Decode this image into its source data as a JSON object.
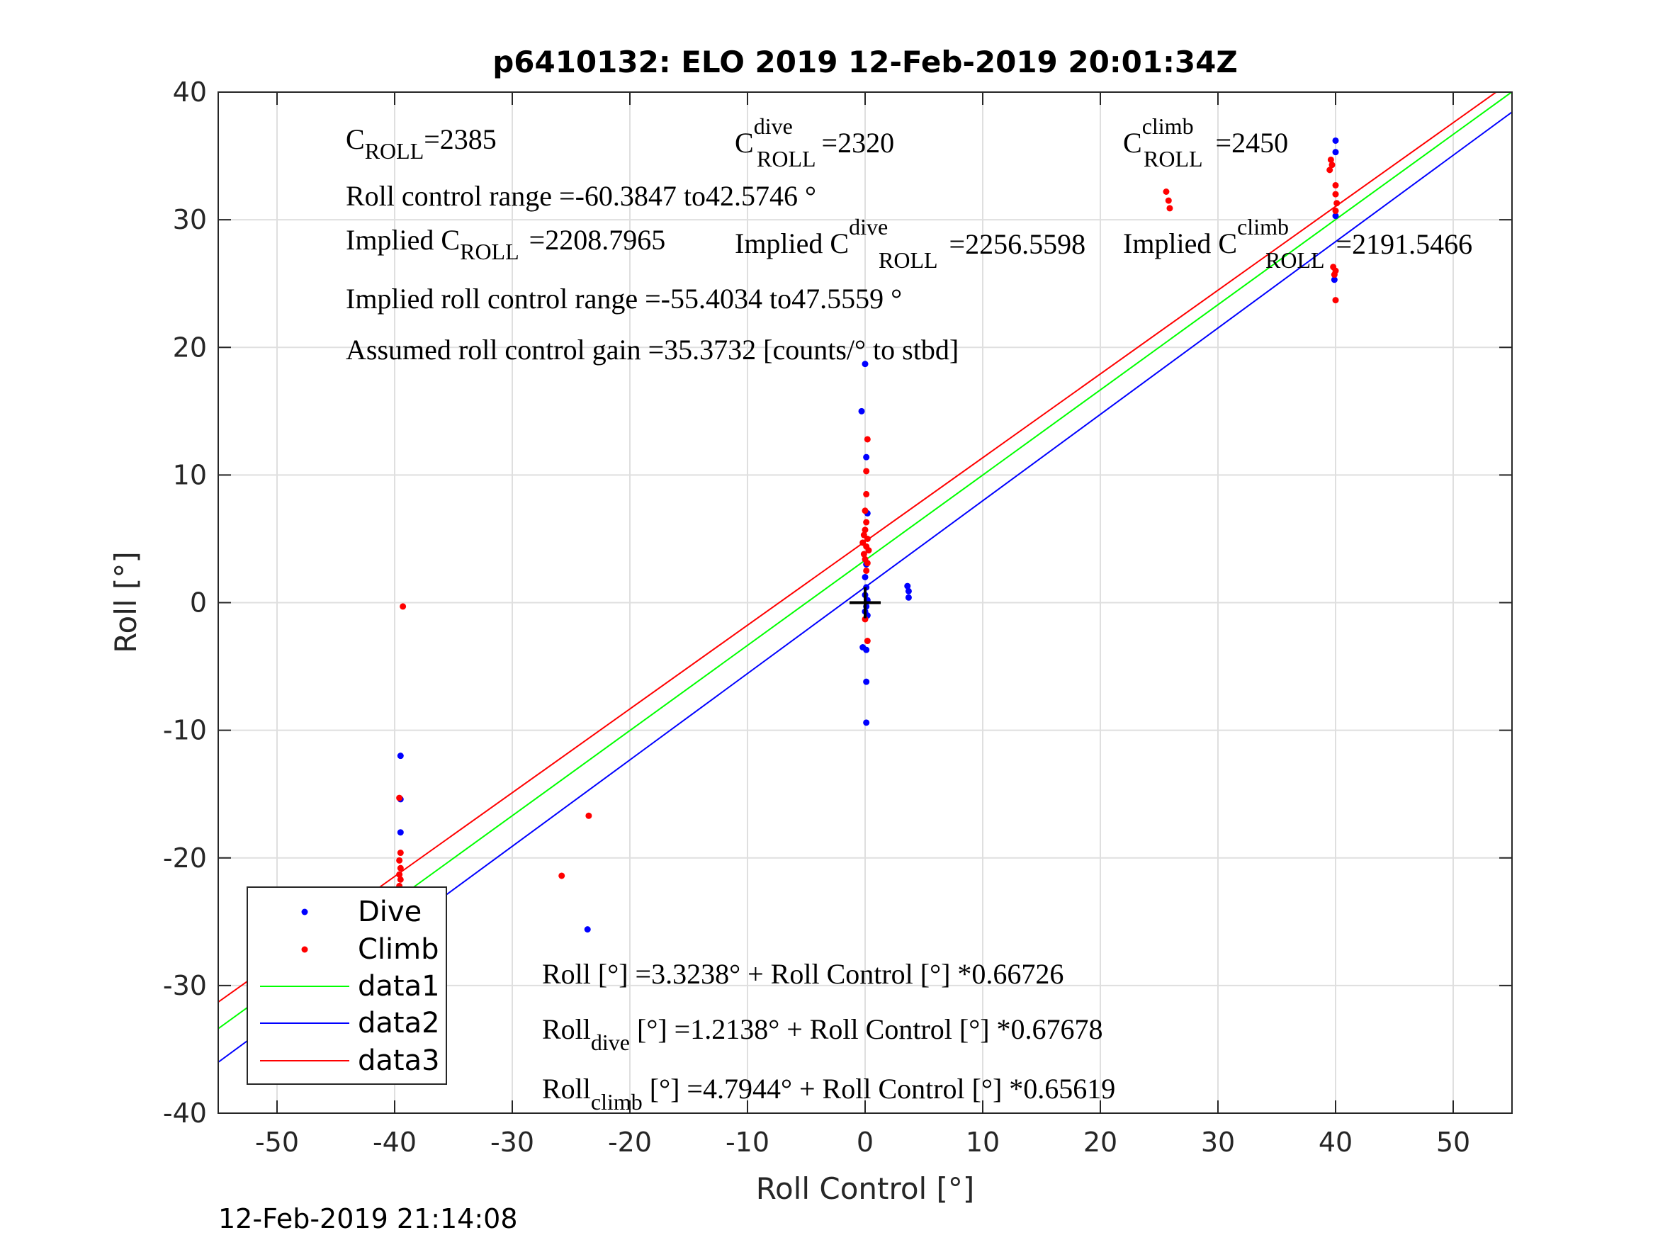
{
  "chart_data": {
    "type": "scatter",
    "title": "p6410132: ELO 2019 12-Feb-2019 20:01:34Z",
    "xlabel": "Roll Control [°]",
    "ylabel": "Roll [°]",
    "xlim": [
      -55,
      55
    ],
    "ylim": [
      -40,
      40
    ],
    "x_ticks": [
      -50,
      -40,
      -30,
      -20,
      -10,
      0,
      10,
      20,
      30,
      40,
      50
    ],
    "y_ticks": [
      -40,
      -30,
      -20,
      -10,
      0,
      10,
      20,
      30,
      40
    ],
    "grid": true,
    "legend_position": "bottom-left",
    "series": [
      {
        "name": "Dive",
        "style": "points",
        "color": "#0000ff",
        "points": [
          [
            -39.5,
            -12.0
          ],
          [
            -39.5,
            -15.4
          ],
          [
            -39.5,
            -18.0
          ],
          [
            -39.6,
            -24.5
          ],
          [
            -39.6,
            -25.3
          ],
          [
            -39.7,
            -25.8
          ],
          [
            -39.6,
            -26.4
          ],
          [
            -39.5,
            -26.9
          ],
          [
            -39.6,
            -28.8
          ],
          [
            -23.6,
            -25.6
          ],
          [
            0.0,
            18.7
          ],
          [
            -0.3,
            15.0
          ],
          [
            0.1,
            11.4
          ],
          [
            0.2,
            7.0
          ],
          [
            0.1,
            3.0
          ],
          [
            0.0,
            2.0
          ],
          [
            0.1,
            1.2
          ],
          [
            0.0,
            0.6
          ],
          [
            0.2,
            0.2
          ],
          [
            0.1,
            -0.3
          ],
          [
            0.0,
            -0.7
          ],
          [
            0.2,
            -1.0
          ],
          [
            -0.2,
            -3.5
          ],
          [
            0.1,
            -3.7
          ],
          [
            0.1,
            -6.2
          ],
          [
            0.1,
            -9.4
          ],
          [
            3.6,
            1.3
          ],
          [
            3.7,
            0.9
          ],
          [
            3.7,
            0.4
          ],
          [
            40.0,
            36.2
          ],
          [
            40.0,
            35.3
          ],
          [
            40.0,
            30.3
          ],
          [
            39.9,
            25.3
          ]
        ]
      },
      {
        "name": "Climb",
        "style": "points",
        "color": "#ff0000",
        "points": [
          [
            -39.3,
            -0.3
          ],
          [
            -39.6,
            -15.3
          ],
          [
            -39.5,
            -19.6
          ],
          [
            -39.6,
            -20.2
          ],
          [
            -39.5,
            -20.8
          ],
          [
            -39.6,
            -21.3
          ],
          [
            -39.5,
            -21.7
          ],
          [
            -39.6,
            -22.2
          ],
          [
            -39.5,
            -22.6
          ],
          [
            -39.6,
            -23.2
          ],
          [
            -39.5,
            -23.8
          ],
          [
            -23.5,
            -16.7
          ],
          [
            -25.8,
            -21.4
          ],
          [
            0.2,
            12.8
          ],
          [
            0.1,
            10.3
          ],
          [
            0.1,
            8.5
          ],
          [
            0.0,
            7.2
          ],
          [
            0.1,
            6.3
          ],
          [
            0.0,
            5.7
          ],
          [
            -0.1,
            5.3
          ],
          [
            0.2,
            5.0
          ],
          [
            -0.2,
            4.7
          ],
          [
            0.1,
            4.4
          ],
          [
            0.3,
            4.1
          ],
          [
            -0.1,
            3.8
          ],
          [
            0.0,
            3.4
          ],
          [
            0.2,
            3.1
          ],
          [
            0.1,
            2.5
          ],
          [
            0.0,
            -1.3
          ],
          [
            0.2,
            -3.0
          ],
          [
            25.6,
            32.2
          ],
          [
            25.8,
            31.5
          ],
          [
            25.9,
            30.9
          ],
          [
            39.6,
            34.7
          ],
          [
            39.5,
            33.9
          ],
          [
            39.7,
            34.3
          ],
          [
            40.0,
            32.7
          ],
          [
            40.0,
            32.0
          ],
          [
            40.1,
            31.3
          ],
          [
            40.0,
            30.7
          ],
          [
            39.8,
            26.3
          ],
          [
            39.9,
            25.7
          ],
          [
            40.0,
            26.0
          ],
          [
            40.0,
            23.7
          ]
        ]
      },
      {
        "name": "data1",
        "style": "line",
        "color": "#00ff00",
        "intercept": 3.3238,
        "slope": 0.66726
      },
      {
        "name": "data2",
        "style": "line",
        "color": "#0000ff",
        "intercept": 1.2138,
        "slope": 0.67678
      },
      {
        "name": "data3",
        "style": "line",
        "color": "#ff0000",
        "intercept": 4.7944,
        "slope": 0.65619
      }
    ],
    "origin_marker": [
      0,
      0
    ]
  },
  "annotations": {
    "c_roll": {
      "base": "C",
      "sub": "ROLL",
      "value": "=2385"
    },
    "c_roll_dive": {
      "base": "C",
      "sup": "dive",
      "sub": "ROLL",
      "value": "=2320"
    },
    "c_roll_climb": {
      "base": "C",
      "sup": "climb",
      "sub": "ROLL",
      "value": "=2450"
    },
    "roll_range": "Roll control range =-60.3847 to42.5746 °",
    "implied_c_roll": {
      "prefix": "Implied C",
      "sub": "ROLL",
      "value": "=2208.7965"
    },
    "implied_c_roll_dive": {
      "prefix": "Implied C",
      "sup": "dive",
      "sub": "ROLL",
      "value": "=2256.5598"
    },
    "implied_c_roll_climb": {
      "prefix": "Implied C",
      "sup": "climb",
      "sub": "ROLL",
      "value": "=2191.5466"
    },
    "implied_range": "Implied roll control range =-55.4034 to47.5559 °",
    "assumed_gain": "Assumed roll control gain =35.3732 [counts/° to stbd]",
    "fit_all": "Roll [°] =3.3238° + Roll Control [°] *0.66726",
    "fit_dive": {
      "base": "Roll",
      "sub": "dive",
      "rest": " [°] =1.2138° + Roll Control [°] *0.67678"
    },
    "fit_climb": {
      "base": "Roll",
      "sub": "climb",
      "rest": " [°] =4.7944° + Roll Control [°] *0.65619"
    }
  },
  "timestamp": "12-Feb-2019 21:14:08"
}
